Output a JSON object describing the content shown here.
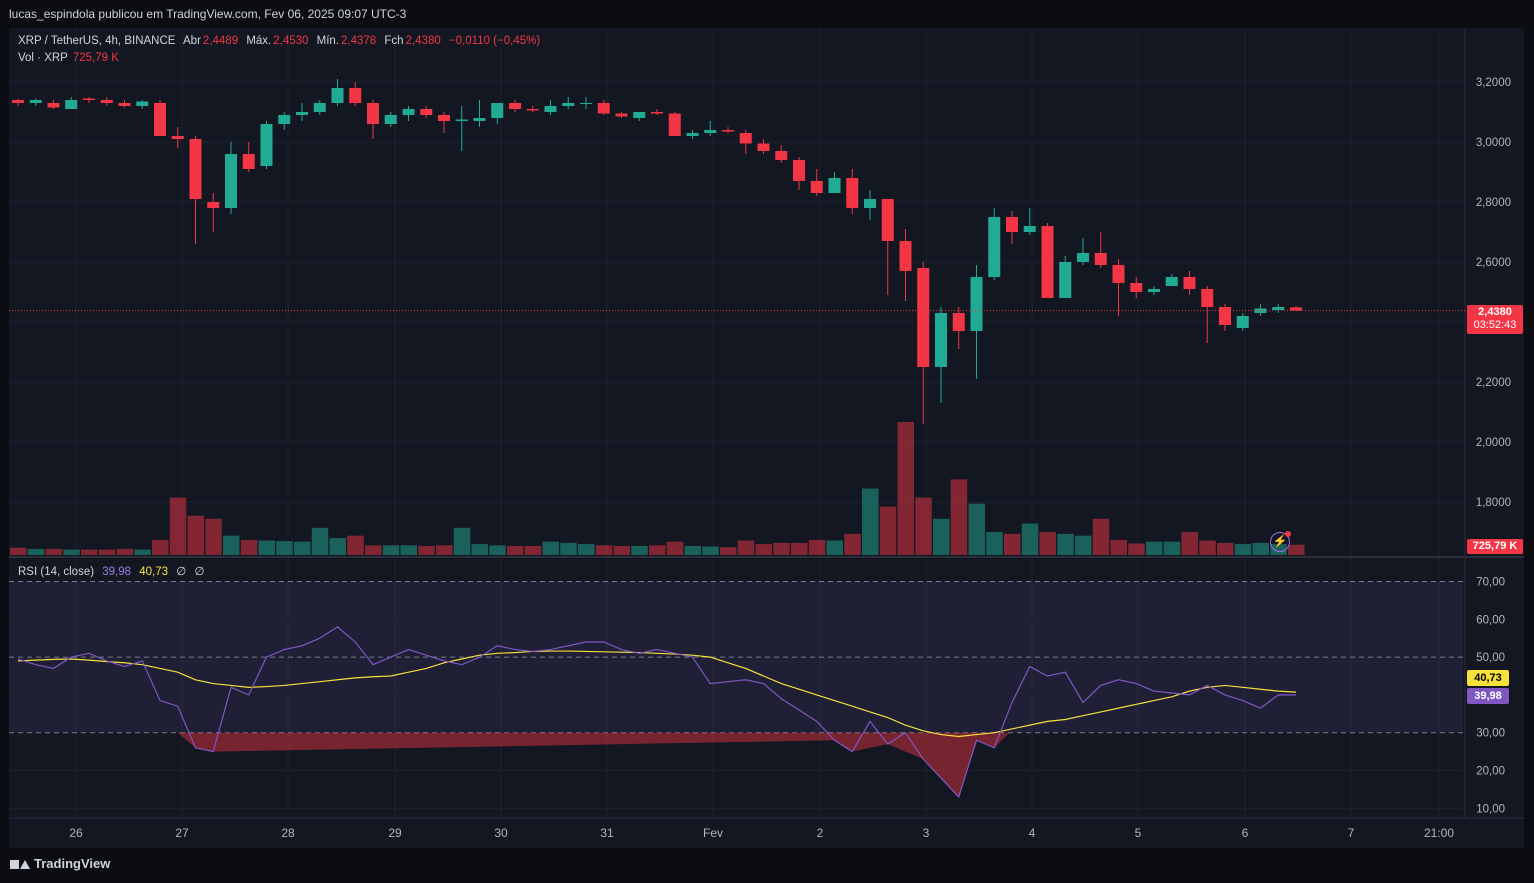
{
  "header": {
    "publisher_line": "lucas_espindola publicou em TradingView.com, Fev 06, 2025 09:07 UTC-3"
  },
  "legend": {
    "symbol": "XRP / TetherUS, 4h, BINANCE",
    "open_label": "Abr",
    "open": "2,4489",
    "high_label": "Máx.",
    "high": "2,4530",
    "low_label": "Mín.",
    "low": "2,4378",
    "close_label": "Fch",
    "close": "2,4380",
    "change": "−0,0110 (−0,45%)",
    "volume_label": "Vol · XRP",
    "volume": "725,79 K"
  },
  "rsi_legend": {
    "label": "RSI (14, close)",
    "rsi": "39,98",
    "ma": "40,73",
    "ph1": "∅",
    "ph2": "∅"
  },
  "price_badge": {
    "price": "2,4380",
    "countdown": "03:52:43"
  },
  "volume_badge": "725,79 K",
  "rsi_badges": {
    "ma": "40,73",
    "rsi": "39,98"
  },
  "footer": {
    "brand": "TradingView"
  },
  "colors": {
    "up": "#22ab94",
    "down": "#f23645",
    "rsi": "#7e57c2",
    "rsi_ma": "#f7e13b",
    "bg": "#131722"
  },
  "icons": {
    "alert": "lightning-icon"
  },
  "chart_data": [
    {
      "type": "candlestick",
      "title": "XRP / TetherUS, 4h, BINANCE",
      "ylim": [
        1.72,
        3.31
      ],
      "y_ticks": [
        "3,2000",
        "3,0000",
        "2,8000",
        "2,6000",
        "2,4000",
        "2,2000",
        "2,0000",
        "1,8000"
      ],
      "x_ticks": [
        "26",
        "27",
        "28",
        "29",
        "30",
        "31",
        "Fev",
        "2",
        "3",
        "4",
        "5",
        "6",
        "7",
        "21:00"
      ],
      "candles": [
        {
          "o": 3.14,
          "h": 3.145,
          "l": 3.12,
          "c": 3.13
        },
        {
          "o": 3.13,
          "h": 3.145,
          "l": 3.12,
          "c": 3.14
        },
        {
          "o": 3.13,
          "h": 3.14,
          "l": 3.11,
          "c": 3.115
        },
        {
          "o": 3.11,
          "h": 3.15,
          "l": 3.11,
          "c": 3.14
        },
        {
          "o": 3.145,
          "h": 3.15,
          "l": 3.13,
          "c": 3.14
        },
        {
          "o": 3.14,
          "h": 3.15,
          "l": 3.12,
          "c": 3.13
        },
        {
          "o": 3.13,
          "h": 3.14,
          "l": 3.115,
          "c": 3.12
        },
        {
          "o": 3.12,
          "h": 3.14,
          "l": 3.11,
          "c": 3.135
        },
        {
          "o": 3.13,
          "h": 3.14,
          "l": 3.02,
          "c": 3.02
        },
        {
          "o": 3.02,
          "h": 3.05,
          "l": 2.98,
          "c": 3.01
        },
        {
          "o": 3.01,
          "h": 3.02,
          "l": 2.66,
          "c": 2.81
        },
        {
          "o": 2.8,
          "h": 2.83,
          "l": 2.7,
          "c": 2.78
        },
        {
          "o": 2.78,
          "h": 3.0,
          "l": 2.76,
          "c": 2.96
        },
        {
          "o": 2.96,
          "h": 3.0,
          "l": 2.9,
          "c": 2.91
        },
        {
          "o": 2.92,
          "h": 3.07,
          "l": 2.91,
          "c": 3.06
        },
        {
          "o": 3.06,
          "h": 3.1,
          "l": 3.04,
          "c": 3.09
        },
        {
          "o": 3.09,
          "h": 3.13,
          "l": 3.07,
          "c": 3.1
        },
        {
          "o": 3.1,
          "h": 3.14,
          "l": 3.09,
          "c": 3.13
        },
        {
          "o": 3.13,
          "h": 3.21,
          "l": 3.12,
          "c": 3.18
        },
        {
          "o": 3.18,
          "h": 3.2,
          "l": 3.12,
          "c": 3.13
        },
        {
          "o": 3.13,
          "h": 3.14,
          "l": 3.01,
          "c": 3.06
        },
        {
          "o": 3.06,
          "h": 3.1,
          "l": 3.05,
          "c": 3.09
        },
        {
          "o": 3.09,
          "h": 3.12,
          "l": 3.07,
          "c": 3.11
        },
        {
          "o": 3.11,
          "h": 3.12,
          "l": 3.08,
          "c": 3.09
        },
        {
          "o": 3.09,
          "h": 3.1,
          "l": 3.03,
          "c": 3.07
        },
        {
          "o": 3.07,
          "h": 3.12,
          "l": 2.97,
          "c": 3.075
        },
        {
          "o": 3.07,
          "h": 3.14,
          "l": 3.05,
          "c": 3.08
        },
        {
          "o": 3.08,
          "h": 3.13,
          "l": 3.06,
          "c": 3.13
        },
        {
          "o": 3.13,
          "h": 3.14,
          "l": 3.1,
          "c": 3.11
        },
        {
          "o": 3.11,
          "h": 3.12,
          "l": 3.1,
          "c": 3.105
        },
        {
          "o": 3.1,
          "h": 3.14,
          "l": 3.09,
          "c": 3.12
        },
        {
          "o": 3.12,
          "h": 3.15,
          "l": 3.11,
          "c": 3.13
        },
        {
          "o": 3.13,
          "h": 3.15,
          "l": 3.11,
          "c": 3.13
        },
        {
          "o": 3.13,
          "h": 3.14,
          "l": 3.09,
          "c": 3.095
        },
        {
          "o": 3.095,
          "h": 3.1,
          "l": 3.08,
          "c": 3.085
        },
        {
          "o": 3.08,
          "h": 3.1,
          "l": 3.07,
          "c": 3.1
        },
        {
          "o": 3.1,
          "h": 3.11,
          "l": 3.09,
          "c": 3.095
        },
        {
          "o": 3.095,
          "h": 3.1,
          "l": 3.02,
          "c": 3.02
        },
        {
          "o": 3.02,
          "h": 3.04,
          "l": 3.01,
          "c": 3.03
        },
        {
          "o": 3.03,
          "h": 3.07,
          "l": 3.02,
          "c": 3.04
        },
        {
          "o": 3.04,
          "h": 3.05,
          "l": 3.03,
          "c": 3.035
        },
        {
          "o": 3.03,
          "h": 3.04,
          "l": 2.96,
          "c": 2.995
        },
        {
          "o": 2.995,
          "h": 3.01,
          "l": 2.96,
          "c": 2.97
        },
        {
          "o": 2.97,
          "h": 2.99,
          "l": 2.93,
          "c": 2.94
        },
        {
          "o": 2.94,
          "h": 2.95,
          "l": 2.84,
          "c": 2.87
        },
        {
          "o": 2.87,
          "h": 2.91,
          "l": 2.82,
          "c": 2.83
        },
        {
          "o": 2.83,
          "h": 2.9,
          "l": 2.83,
          "c": 2.88
        },
        {
          "o": 2.88,
          "h": 2.91,
          "l": 2.76,
          "c": 2.78
        },
        {
          "o": 2.78,
          "h": 2.84,
          "l": 2.74,
          "c": 2.81
        },
        {
          "o": 2.81,
          "h": 2.81,
          "l": 2.49,
          "c": 2.67
        },
        {
          "o": 2.67,
          "h": 2.71,
          "l": 2.47,
          "c": 2.57
        },
        {
          "o": 2.58,
          "h": 2.6,
          "l": 2.06,
          "c": 2.25
        },
        {
          "o": 2.25,
          "h": 2.45,
          "l": 2.13,
          "c": 2.43
        },
        {
          "o": 2.43,
          "h": 2.45,
          "l": 2.31,
          "c": 2.37
        },
        {
          "o": 2.37,
          "h": 2.59,
          "l": 2.21,
          "c": 2.55
        },
        {
          "o": 2.55,
          "h": 2.78,
          "l": 2.54,
          "c": 2.75
        },
        {
          "o": 2.75,
          "h": 2.77,
          "l": 2.66,
          "c": 2.7
        },
        {
          "o": 2.7,
          "h": 2.78,
          "l": 2.69,
          "c": 2.72
        },
        {
          "o": 2.72,
          "h": 2.73,
          "l": 2.48,
          "c": 2.48
        },
        {
          "o": 2.48,
          "h": 2.62,
          "l": 2.48,
          "c": 2.6
        },
        {
          "o": 2.6,
          "h": 2.68,
          "l": 2.59,
          "c": 2.63
        },
        {
          "o": 2.63,
          "h": 2.7,
          "l": 2.58,
          "c": 2.59
        },
        {
          "o": 2.59,
          "h": 2.61,
          "l": 2.42,
          "c": 2.53
        },
        {
          "o": 2.53,
          "h": 2.55,
          "l": 2.48,
          "c": 2.5
        },
        {
          "o": 2.5,
          "h": 2.52,
          "l": 2.49,
          "c": 2.51
        },
        {
          "o": 2.52,
          "h": 2.56,
          "l": 2.52,
          "c": 2.55
        },
        {
          "o": 2.55,
          "h": 2.57,
          "l": 2.49,
          "c": 2.51
        },
        {
          "o": 2.51,
          "h": 2.52,
          "l": 2.33,
          "c": 2.45
        },
        {
          "o": 2.45,
          "h": 2.46,
          "l": 2.37,
          "c": 2.39
        },
        {
          "o": 2.38,
          "h": 2.43,
          "l": 2.37,
          "c": 2.42
        },
        {
          "o": 2.43,
          "h": 2.46,
          "l": 2.42,
          "c": 2.445
        },
        {
          "o": 2.44,
          "h": 2.46,
          "l": 2.43,
          "c": 2.45
        },
        {
          "o": 2.4489,
          "h": 2.453,
          "l": 2.4378,
          "c": 2.438
        }
      ],
      "volume": [
        12,
        10,
        10,
        9,
        9,
        9,
        10,
        9,
        25,
        95,
        65,
        60,
        32,
        25,
        24,
        23,
        22,
        45,
        28,
        32,
        16,
        16,
        16,
        15,
        16,
        45,
        18,
        16,
        15,
        15,
        22,
        20,
        18,
        16,
        15,
        15,
        16,
        22,
        15,
        14,
        13,
        24,
        18,
        20,
        20,
        25,
        24,
        35,
        110,
        80,
        220,
        95,
        60,
        125,
        85,
        38,
        35,
        52,
        38,
        35,
        32,
        60,
        25,
        19,
        22,
        22,
        38,
        24,
        20,
        18,
        20,
        18,
        17
      ],
      "up_down": "derived from candle open/close"
    },
    {
      "type": "line",
      "title": "RSI (14, close)",
      "ylim": [
        5,
        75
      ],
      "y_ticks": [
        "70,00",
        "60,00",
        "50,00",
        "40,00",
        "30,00",
        "20,00",
        "10,00"
      ],
      "levels": [
        70,
        50,
        30
      ],
      "series": [
        {
          "name": "RSI",
          "values": [
            49.5,
            48,
            47,
            50,
            51,
            49,
            47.5,
            49,
            38.5,
            37,
            26,
            25,
            42,
            40,
            50,
            52,
            53,
            55,
            58,
            54,
            48,
            50,
            52,
            50.5,
            49,
            48,
            50,
            53,
            52,
            51.5,
            52,
            53,
            54,
            54,
            52,
            51,
            52,
            51,
            50,
            43,
            43.5,
            44,
            43,
            39,
            36,
            33,
            28,
            25,
            33,
            27,
            30,
            23,
            18,
            13,
            28,
            26,
            38,
            47.5,
            45,
            46,
            38,
            42.5,
            44,
            43,
            41,
            40.5,
            40,
            42.5,
            40,
            38.5,
            36.5,
            40,
            39.98
          ]
        },
        {
          "name": "RSI MA",
          "values": [
            49,
            49.2,
            49.4,
            49.5,
            49.2,
            48.8,
            48.5,
            48,
            47,
            46,
            44,
            43,
            42.5,
            42,
            42.2,
            42.5,
            43,
            43.5,
            44,
            44.5,
            44.8,
            45,
            46,
            47,
            48.5,
            49.5,
            50.5,
            51,
            51.2,
            51.5,
            51.6,
            51.6,
            51.5,
            51.4,
            51.3,
            51.2,
            51,
            50.8,
            50.5,
            50,
            48.5,
            47,
            45,
            43,
            41.5,
            40,
            38.5,
            37,
            35.5,
            34,
            32,
            30.5,
            29.5,
            29,
            29.5,
            30,
            31,
            32,
            33,
            33.5,
            34.5,
            35.5,
            36.5,
            37.5,
            38.5,
            39.5,
            41,
            42,
            42.5,
            42,
            41.5,
            41,
            40.73
          ]
        }
      ]
    }
  ]
}
